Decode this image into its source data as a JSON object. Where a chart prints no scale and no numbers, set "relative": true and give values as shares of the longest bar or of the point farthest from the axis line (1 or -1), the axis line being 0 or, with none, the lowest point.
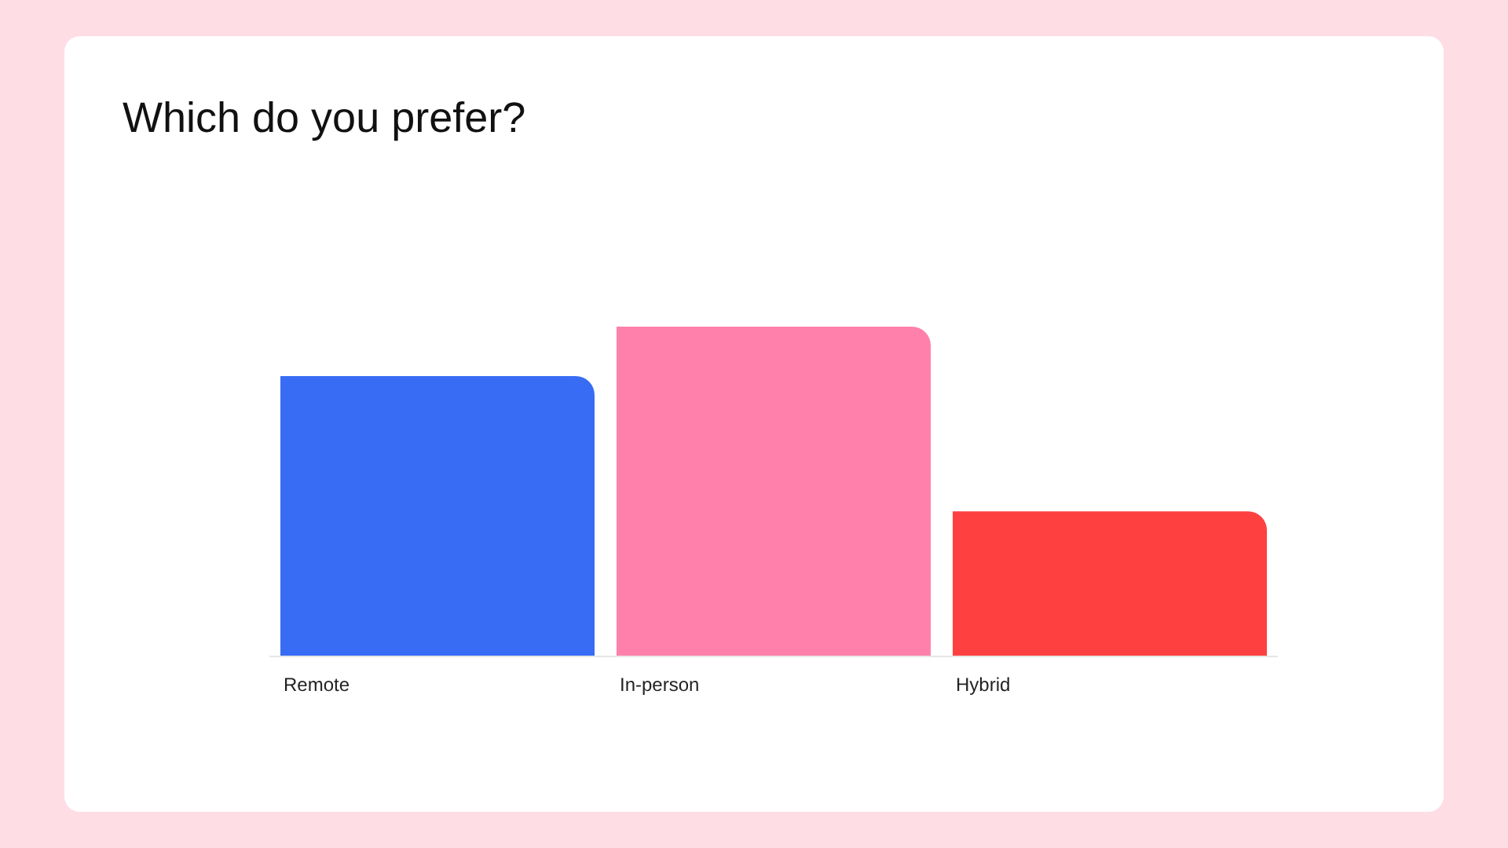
{
  "chart_data": {
    "type": "bar",
    "title": "Which do you prefer?",
    "categories": [
      "Remote",
      "In-person",
      "Hybrid"
    ],
    "values": [
      0.85,
      1,
      0.44
    ],
    "colors": [
      "#386cf4",
      "#ff80ab",
      "#ff4040"
    ],
    "relative": true
  }
}
